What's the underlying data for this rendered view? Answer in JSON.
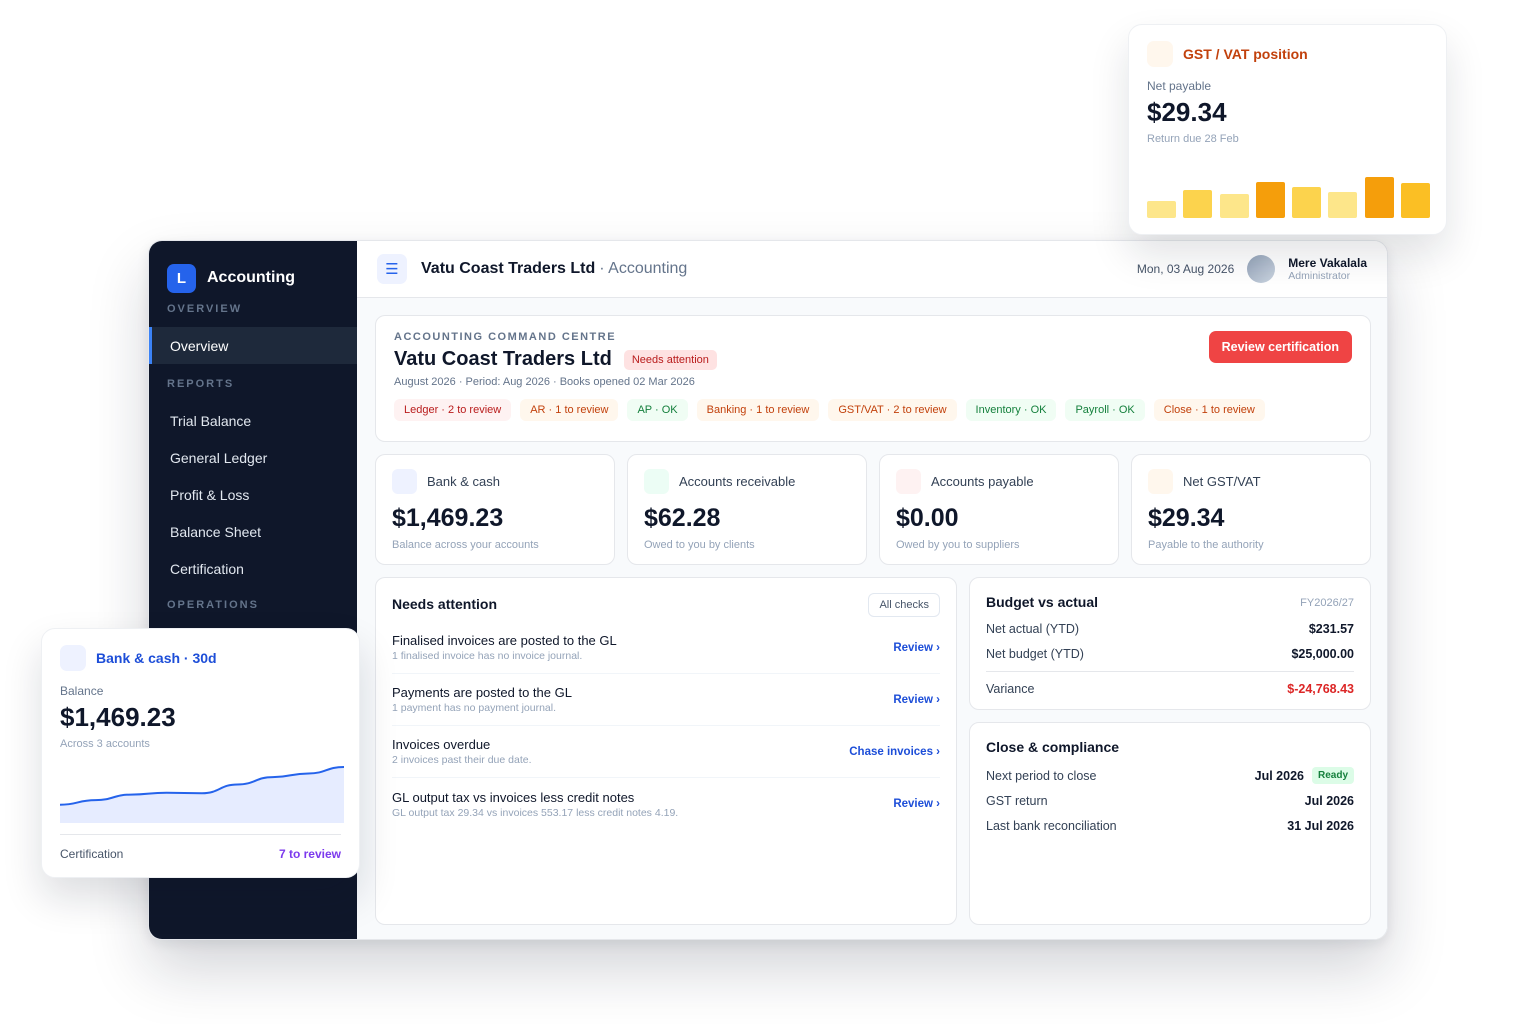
{
  "sidebar": {
    "logo_letter": "L",
    "brand": "Accounting",
    "sections": {
      "overview": "OVERVIEW",
      "reports": "REPORTS",
      "operations": "OPERATIONS"
    },
    "items": {
      "overview": "Overview",
      "trial_balance": "Trial Balance",
      "general_ledger": "General Ledger",
      "profit_loss": "Profit & Loss",
      "balance_sheet": "Balance Sheet",
      "certification": "Certification"
    },
    "active": "Overview"
  },
  "topbar": {
    "menu_icon": "☰",
    "company": "Vatu Coast Traders Ltd",
    "section": "· Accounting",
    "date": "Mon, 03 Aug 2026",
    "user_name": "Mere Vakalala",
    "user_role": "Administrator"
  },
  "command_centre": {
    "eyebrow": "ACCOUNTING COMMAND CENTRE",
    "title": "Vatu Coast Traders Ltd",
    "status_badge": "Needs attention",
    "meta": "August 2026 · Period: Aug 2026 · Books opened 02 Mar 2026",
    "action_label": "Review certification",
    "chips": [
      {
        "label": "Ledger · 2 to review",
        "tone": "red"
      },
      {
        "label": "AR · 1 to review",
        "tone": "amber"
      },
      {
        "label": "AP · OK",
        "tone": "green"
      },
      {
        "label": "Banking · 1 to review",
        "tone": "amber"
      },
      {
        "label": "GST/VAT · 2 to review",
        "tone": "amber"
      },
      {
        "label": "Inventory · OK",
        "tone": "green"
      },
      {
        "label": "Payroll · OK",
        "tone": "green"
      },
      {
        "label": "Close · 1 to review",
        "tone": "amber"
      }
    ]
  },
  "kpis": [
    {
      "label": "Bank & cash",
      "value": "$1,469.23",
      "sub": "Balance across your accounts",
      "icon": "bank-icon",
      "icon_color": "#eef2ff"
    },
    {
      "label": "Accounts receivable",
      "value": "$62.28",
      "sub": "Owed to you by clients",
      "icon": "receivable-icon",
      "icon_color": "#ecfdf5"
    },
    {
      "label": "Accounts payable",
      "value": "$0.00",
      "sub": "Owed by you to suppliers",
      "icon": "payable-icon",
      "icon_color": "#fef2f2"
    },
    {
      "label": "Net GST/VAT",
      "value": "$29.34",
      "sub": "Payable to the authority",
      "icon": "tax-icon",
      "icon_color": "#fff7ed"
    }
  ],
  "needs_attention": {
    "title": "Needs attention",
    "all_checks": "All checks",
    "rows": [
      {
        "title": "Finalised invoices are posted to the GL",
        "desc": "1 finalised invoice has no invoice journal.",
        "action": "Review ›"
      },
      {
        "title": "Payments are posted to the GL",
        "desc": "1 payment has no payment journal.",
        "action": "Review ›"
      },
      {
        "title": "Invoices overdue",
        "desc": "2 invoices past their due date.",
        "action": "Chase invoices ›"
      },
      {
        "title": "GL output tax vs invoices less credit notes",
        "desc": "GL output tax 29.34 vs invoices 553.17 less credit notes 4.19.",
        "action": "Review ›"
      }
    ]
  },
  "budget": {
    "title": "Budget vs actual",
    "fy": "FY2026/27",
    "net_actual_label": "Net actual (YTD)",
    "net_actual": "$231.57",
    "net_budget_label": "Net budget (YTD)",
    "net_budget": "$25,000.00",
    "variance_label": "Variance",
    "variance": "$-24,768.43"
  },
  "close": {
    "title": "Close & compliance",
    "next_period_label": "Next period to close",
    "next_period": "Jul 2026",
    "ready": "Ready",
    "gst_return_label": "GST return",
    "gst_return": "Jul 2026",
    "last_recon_label": "Last bank reconciliation",
    "last_recon": "31 Jul 2026"
  },
  "gst_card": {
    "title": "GST / VAT position",
    "label": "Net payable",
    "value": "$29.34",
    "due": "Return due 28 Feb",
    "bars": [
      0.36,
      0.58,
      0.49,
      0.76,
      0.65,
      0.55,
      0.86,
      0.72
    ],
    "bar_colors": [
      "#fde68a",
      "#fcd34d",
      "#fde68a",
      "#f59e0b",
      "#fcd34d",
      "#fde68a",
      "#f59e0b",
      "#fbbf24"
    ]
  },
  "bank_card": {
    "title": "Bank & cash · 30d",
    "label": "Balance",
    "value": "$1,469.23",
    "sub": "Across 3 accounts",
    "trend": [
      0.18,
      0.28,
      0.4,
      0.44,
      0.43,
      0.62,
      0.78,
      0.86,
      1.0
    ],
    "foot_label": "Certification",
    "foot_link": "7 to review"
  },
  "colors": {
    "sidebar_bg": "#0f172a",
    "accent": "#2563eb",
    "danger": "#ef4444",
    "success": "#15803d"
  }
}
